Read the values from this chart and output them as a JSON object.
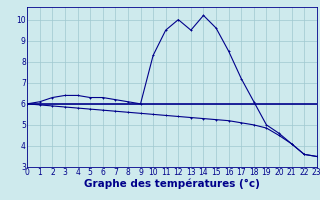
{
  "xlabel": "Graphe des températures (°c)",
  "hours": [
    0,
    1,
    2,
    3,
    4,
    5,
    6,
    7,
    8,
    9,
    10,
    11,
    12,
    13,
    14,
    15,
    16,
    17,
    18,
    19,
    20,
    21,
    22,
    23
  ],
  "temp_curve": [
    6.0,
    6.1,
    6.3,
    6.4,
    6.4,
    6.3,
    6.3,
    6.2,
    6.1,
    6.0,
    8.3,
    9.5,
    10.0,
    9.5,
    10.2,
    9.6,
    8.5,
    7.2,
    6.1,
    5.0,
    4.6,
    4.1,
    3.6,
    3.5
  ],
  "temp_mean": [
    6.0,
    6.0,
    6.0,
    6.0,
    6.0,
    6.0,
    6.0,
    6.0,
    6.0,
    6.0,
    6.0,
    6.0,
    6.0,
    6.0,
    6.0,
    6.0,
    6.0,
    6.0,
    6.0,
    6.0,
    6.0,
    6.0,
    6.0,
    6.0
  ],
  "temp_decline": [
    6.0,
    5.95,
    5.9,
    5.85,
    5.8,
    5.75,
    5.7,
    5.65,
    5.6,
    5.55,
    5.5,
    5.45,
    5.4,
    5.35,
    5.3,
    5.25,
    5.2,
    5.1,
    5.0,
    4.85,
    4.5,
    4.1,
    3.6,
    3.5
  ],
  "bg_color": "#ceeaed",
  "line_color": "#00008b",
  "grid_color": "#a0c8d0",
  "xlim": [
    0,
    23
  ],
  "ylim": [
    3,
    10.6
  ],
  "yticks": [
    3,
    4,
    5,
    6,
    7,
    8,
    9,
    10
  ],
  "xticks": [
    0,
    1,
    2,
    3,
    4,
    5,
    6,
    7,
    8,
    9,
    10,
    11,
    12,
    13,
    14,
    15,
    16,
    17,
    18,
    19,
    20,
    21,
    22,
    23
  ],
  "tick_fontsize": 5.5,
  "label_fontsize": 7.5,
  "marker": "+"
}
